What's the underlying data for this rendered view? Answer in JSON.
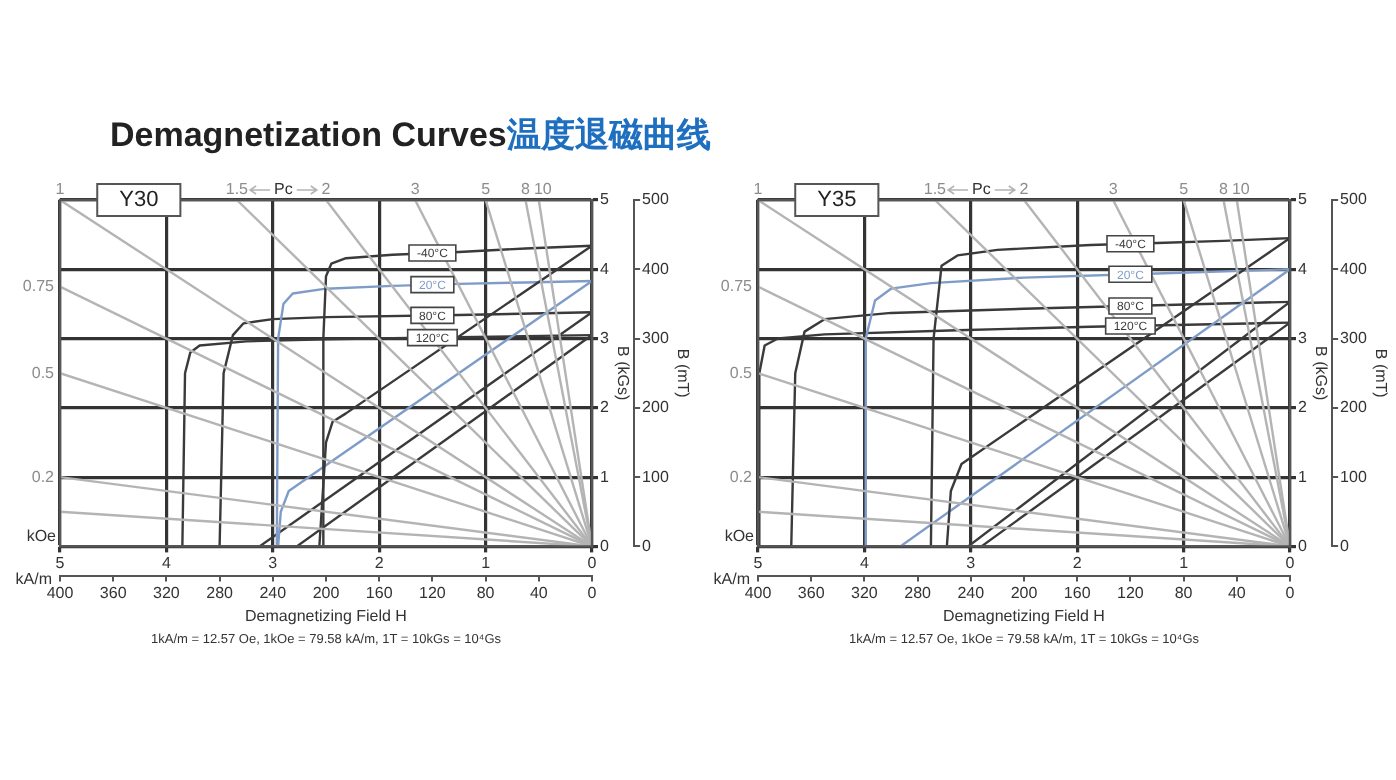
{
  "chart_data": [
    {
      "type": "line",
      "title": "Demagnetization Curves温度退磁曲线",
      "subtitle": "Y30",
      "xlabel": "Demagnetizing Field H",
      "x2label": "kOe",
      "ylabel": "B (mT)",
      "y2label": "B (kGs)",
      "annotations": [
        "kA/m",
        "Pc",
        "1kA/m = 12.57 Oe, 1kOe = 79.58 kA/m, 1T = 10kGs = 10⁴Gs"
      ],
      "xlim": [
        400,
        0
      ],
      "xticks": [
        400,
        360,
        320,
        280,
        240,
        200,
        160,
        120,
        80,
        40,
        0
      ],
      "x2lim": [
        5,
        0
      ],
      "x2ticks": [
        5,
        4,
        3,
        2,
        1,
        0
      ],
      "ylim": [
        0,
        500
      ],
      "yticks": [
        0,
        100,
        200,
        300,
        400,
        500
      ],
      "y2lim": [
        0,
        5
      ],
      "y2ticks": [
        0,
        1,
        2,
        3,
        4,
        5
      ],
      "grid": true,
      "marker": "none",
      "line_style": "solid",
      "series": [
        {
          "name": "1",
          "color": "#b4b4b4",
          "x": [
            0,
            400
          ],
          "values": [
            0,
            500
          ]
        },
        {
          "name": "0.75",
          "color": "#b4b4b4",
          "x": [
            0,
            400
          ],
          "values": [
            0,
            375
          ]
        },
        {
          "name": "0.5",
          "color": "#b4b4b4",
          "x": [
            0,
            400
          ],
          "values": [
            0,
            250
          ]
        },
        {
          "name": "0.2",
          "color": "#b4b4b4",
          "x": [
            0,
            400
          ],
          "values": [
            0,
            100
          ]
        },
        {
          "color": "#b4b4b4",
          "x": [
            0,
            400
          ],
          "values": [
            0,
            50
          ]
        },
        {
          "name": "1.5",
          "color": "#b4b4b4",
          "x": [
            0,
            267
          ],
          "values": [
            0,
            500
          ]
        },
        {
          "name": "2",
          "color": "#b4b4b4",
          "x": [
            0,
            200
          ],
          "values": [
            0,
            500
          ]
        },
        {
          "name": "3",
          "color": "#b4b4b4",
          "x": [
            0,
            133
          ],
          "values": [
            0,
            500
          ]
        },
        {
          "name": "5",
          "color": "#b4b4b4",
          "x": [
            0,
            80
          ],
          "values": [
            0,
            500
          ]
        },
        {
          "name": "8",
          "color": "#b4b4b4",
          "x": [
            0,
            50
          ],
          "values": [
            0,
            500
          ]
        },
        {
          "name": "10",
          "color": "#b4b4b4",
          "x": [
            0,
            40
          ],
          "values": [
            0,
            500
          ]
        },
        {
          "name": "-40°C",
          "color": "#3a3a3a",
          "x": [
            203,
            202,
            200,
            196,
            185,
            150,
            100,
            50,
            0
          ],
          "values": [
            0,
            300,
            390,
            408,
            416,
            421,
            425,
            430,
            434
          ]
        },
        {
          "color": "#3a3a3a",
          "x": [
            205,
            200,
            195,
            185,
            0
          ],
          "values": [
            0,
            150,
            180,
            192,
            434
          ]
        },
        {
          "name": "20°C",
          "color": "#7f9cc8",
          "x": [
            237,
            236,
            232,
            225,
            200,
            150,
            100,
            50,
            0
          ],
          "values": [
            0,
            300,
            350,
            365,
            372,
            376,
            379,
            381,
            383
          ]
        },
        {
          "color": "#7f9cc8",
          "x": [
            236,
            234,
            228,
            0
          ],
          "values": [
            0,
            50,
            80,
            383
          ]
        },
        {
          "name": "80°C",
          "color": "#3a3a3a",
          "x": [
            280,
            277,
            270,
            262,
            240,
            200,
            100,
            0
          ],
          "values": [
            0,
            250,
            305,
            322,
            328,
            331,
            334,
            338
          ]
        },
        {
          "color": "#3a3a3a",
          "x": [
            250,
            0
          ],
          "values": [
            0,
            338
          ]
        },
        {
          "name": "120°C",
          "color": "#3a3a3a",
          "x": [
            308,
            306,
            302,
            295,
            260,
            200,
            100,
            0
          ],
          "values": [
            0,
            250,
            280,
            290,
            296,
            299,
            302,
            305
          ]
        },
        {
          "color": "#3a3a3a",
          "x": [
            222,
            0
          ],
          "values": [
            0,
            305
          ]
        }
      ]
    },
    {
      "type": "line",
      "subtitle": "Y35",
      "xlabel": "Demagnetizing Field H",
      "x2label": "kOe",
      "ylabel": "B (mT)",
      "y2label": "B (kGs)",
      "annotations": [
        "kA/m",
        "Pc",
        "1kA/m = 12.57 Oe, 1kOe = 79.58 kA/m, 1T = 10kGs = 10⁴Gs"
      ],
      "xlim": [
        400,
        0
      ],
      "xticks": [
        400,
        360,
        320,
        280,
        240,
        200,
        160,
        120,
        80,
        40,
        0
      ],
      "x2lim": [
        5,
        0
      ],
      "x2ticks": [
        5,
        4,
        3,
        2,
        1,
        0
      ],
      "ylim": [
        0,
        500
      ],
      "yticks": [
        0,
        100,
        200,
        300,
        400,
        500
      ],
      "y2lim": [
        0,
        5
      ],
      "y2ticks": [
        0,
        1,
        2,
        3,
        4,
        5
      ],
      "grid": true,
      "marker": "none",
      "line_style": "solid",
      "series": [
        {
          "name": "1",
          "color": "#b4b4b4",
          "x": [
            0,
            400
          ],
          "values": [
            0,
            500
          ]
        },
        {
          "name": "0.75",
          "color": "#b4b4b4",
          "x": [
            0,
            400
          ],
          "values": [
            0,
            375
          ]
        },
        {
          "name": "0.5",
          "color": "#b4b4b4",
          "x": [
            0,
            400
          ],
          "values": [
            0,
            250
          ]
        },
        {
          "name": "0.2",
          "color": "#b4b4b4",
          "x": [
            0,
            400
          ],
          "values": [
            0,
            100
          ]
        },
        {
          "color": "#b4b4b4",
          "x": [
            0,
            400
          ],
          "values": [
            0,
            50
          ]
        },
        {
          "name": "1.5",
          "color": "#b4b4b4",
          "x": [
            0,
            267
          ],
          "values": [
            0,
            500
          ]
        },
        {
          "name": "2",
          "color": "#b4b4b4",
          "x": [
            0,
            200
          ],
          "values": [
            0,
            500
          ]
        },
        {
          "name": "3",
          "color": "#b4b4b4",
          "x": [
            0,
            133
          ],
          "values": [
            0,
            500
          ]
        },
        {
          "name": "5",
          "color": "#b4b4b4",
          "x": [
            0,
            80
          ],
          "values": [
            0,
            500
          ]
        },
        {
          "name": "8",
          "color": "#b4b4b4",
          "x": [
            0,
            50
          ],
          "values": [
            0,
            500
          ]
        },
        {
          "name": "10",
          "color": "#b4b4b4",
          "x": [
            0,
            40
          ],
          "values": [
            0,
            500
          ]
        },
        {
          "name": "-40°C",
          "color": "#3a3a3a",
          "x": [
            270,
            268,
            262,
            250,
            220,
            150,
            100,
            50,
            0
          ],
          "values": [
            0,
            300,
            405,
            420,
            428,
            435,
            438,
            441,
            445
          ]
        },
        {
          "color": "#3a3a3a",
          "x": [
            258,
            255,
            247,
            0
          ],
          "values": [
            0,
            80,
            119,
            445
          ]
        },
        {
          "name": "20°C",
          "color": "#7f9cc8",
          "x": [
            320,
            319,
            312,
            300,
            270,
            200,
            100,
            0
          ],
          "values": [
            0,
            300,
            355,
            372,
            380,
            388,
            394,
            400
          ]
        },
        {
          "color": "#7f9cc8",
          "x": [
            293,
            0
          ],
          "values": [
            0,
            400
          ]
        },
        {
          "name": "80°C",
          "color": "#3a3a3a",
          "x": [
            375,
            372,
            365,
            350,
            300,
            200,
            100,
            0
          ],
          "values": [
            0,
            250,
            310,
            328,
            337,
            343,
            348,
            353
          ]
        },
        {
          "color": "#3a3a3a",
          "x": [
            242,
            0
          ],
          "values": [
            0,
            353
          ]
        },
        {
          "name": "120°C",
          "color": "#3a3a3a",
          "x": [
            400,
            399,
            395,
            385,
            350,
            250,
            150,
            0
          ],
          "values": [
            0,
            250,
            290,
            300,
            306,
            312,
            317,
            323
          ]
        },
        {
          "color": "#3a3a3a",
          "x": [
            232,
            0
          ],
          "values": [
            0,
            323
          ]
        }
      ]
    }
  ]
}
